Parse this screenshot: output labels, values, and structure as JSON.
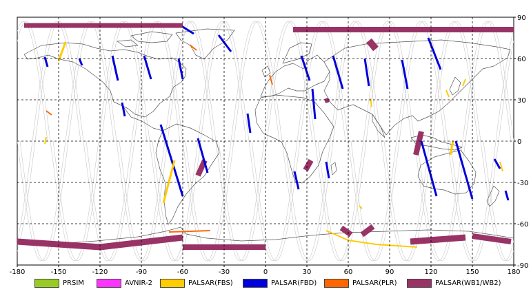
{
  "map": {
    "lon_range": [
      -180,
      180
    ],
    "lat_range": [
      -90,
      90
    ],
    "grid_step_lon": 30,
    "grid_step_lat": 30,
    "grid": "dashed",
    "x_ticks": [
      "-180",
      "-150",
      "-120",
      "-90",
      "-60",
      "-30",
      "0",
      "30",
      "60",
      "90",
      "120",
      "150",
      "180"
    ],
    "y_ticks": [
      "90",
      "60",
      "30",
      "0",
      "-30",
      "-60",
      "-90"
    ]
  },
  "legend": [
    {
      "label": "PRSIM",
      "color": "#99cc22"
    },
    {
      "label": "AVNIR-2",
      "color": "#ff33ff"
    },
    {
      "label": "PALSAR(FBS)",
      "color": "#ffcc00"
    },
    {
      "label": "PALSAR(FBD)",
      "color": "#0000dd"
    },
    {
      "label": "PALSAR(PLR)",
      "color": "#ff6600"
    },
    {
      "label": "PALSAR(WB1/WB2)",
      "color": "#993366"
    }
  ],
  "chart_data": {
    "type": "map",
    "swaths": [
      {
        "mode": "PALSAR(WB1/WB2)",
        "points": [
          [
            -175,
            84
          ],
          [
            -60,
            84
          ]
        ],
        "width": 7
      },
      {
        "mode": "PALSAR(WB1/WB2)",
        "points": [
          [
            20,
            81
          ],
          [
            180,
            81
          ]
        ],
        "width": 8
      },
      {
        "mode": "PALSAR(WB1/WB2)",
        "points": [
          [
            75,
            73
          ],
          [
            80,
            67
          ]
        ],
        "width": 10
      },
      {
        "mode": "PALSAR(WB1/WB2)",
        "points": [
          [
            44,
            31
          ],
          [
            45,
            28
          ]
        ],
        "width": 6
      },
      {
        "mode": "PALSAR(WB1/WB2)",
        "points": [
          [
            113,
            7
          ],
          [
            109,
            -10
          ]
        ],
        "width": 8
      },
      {
        "mode": "PALSAR(WB1/WB2)",
        "points": [
          [
            -44,
            -14
          ],
          [
            -49,
            -25
          ]
        ],
        "width": 8
      },
      {
        "mode": "PALSAR(WB1/WB2)",
        "points": [
          [
            33,
            -14
          ],
          [
            29,
            -21
          ]
        ],
        "width": 8
      },
      {
        "mode": "PALSAR(WB1/WB2)",
        "points": [
          [
            -180,
            -73
          ],
          [
            -120,
            -77
          ],
          [
            -60,
            -70
          ]
        ],
        "width": 9
      },
      {
        "mode": "PALSAR(WB1/WB2)",
        "points": [
          [
            -60,
            -77
          ],
          [
            0,
            -77
          ]
        ],
        "width": 8
      },
      {
        "mode": "PALSAR(WB1/WB2)",
        "points": [
          [
            55,
            -63
          ],
          [
            62,
            -68
          ]
        ],
        "width": 8
      },
      {
        "mode": "PALSAR(WB1/WB2)",
        "points": [
          [
            78,
            -62
          ],
          [
            70,
            -68
          ]
        ],
        "width": 8
      },
      {
        "mode": "PALSAR(WB1/WB2)",
        "points": [
          [
            105,
            -73
          ],
          [
            145,
            -70
          ]
        ],
        "width": 9
      },
      {
        "mode": "PALSAR(WB1/WB2)",
        "points": [
          [
            150,
            -69
          ],
          [
            178,
            -73
          ]
        ],
        "width": 8
      },
      {
        "mode": "PALSAR(FBD)",
        "points": [
          [
            -60,
            83
          ],
          [
            -52,
            78
          ]
        ],
        "width": 3
      },
      {
        "mode": "PALSAR(FBD)",
        "points": [
          [
            -34,
            77
          ],
          [
            -25,
            65
          ]
        ],
        "width": 3
      },
      {
        "mode": "PALSAR(FBD)",
        "points": [
          [
            -160,
            61
          ],
          [
            -158,
            54
          ]
        ],
        "width": 3
      },
      {
        "mode": "PALSAR(FBD)",
        "points": [
          [
            -135,
            60
          ],
          [
            -133,
            55
          ]
        ],
        "width": 3
      },
      {
        "mode": "PALSAR(FBD)",
        "points": [
          [
            -111,
            62
          ],
          [
            -107,
            44
          ]
        ],
        "width": 3
      },
      {
        "mode": "PALSAR(FBD)",
        "points": [
          [
            -88,
            62
          ],
          [
            -83,
            45
          ]
        ],
        "width": 3
      },
      {
        "mode": "PALSAR(FBD)",
        "points": [
          [
            -63,
            60
          ],
          [
            -60,
            45
          ]
        ],
        "width": 3
      },
      {
        "mode": "PALSAR(FBD)",
        "points": [
          [
            26,
            62
          ],
          [
            32,
            44
          ]
        ],
        "width": 3
      },
      {
        "mode": "PALSAR(FBD)",
        "points": [
          [
            49,
            62
          ],
          [
            56,
            38
          ]
        ],
        "width": 3
      },
      {
        "mode": "PALSAR(FBD)",
        "points": [
          [
            72,
            60
          ],
          [
            75,
            40
          ]
        ],
        "width": 3
      },
      {
        "mode": "PALSAR(FBD)",
        "points": [
          [
            99,
            59
          ],
          [
            103,
            38
          ]
        ],
        "width": 3
      },
      {
        "mode": "PALSAR(FBD)",
        "points": [
          [
            118,
            75
          ],
          [
            127,
            52
          ]
        ],
        "width": 3
      },
      {
        "mode": "PALSAR(FBD)",
        "points": [
          [
            -104,
            28
          ],
          [
            -102,
            18
          ]
        ],
        "width": 3
      },
      {
        "mode": "PALSAR(FBD)",
        "points": [
          [
            -76,
            12
          ],
          [
            -60,
            -40
          ]
        ],
        "width": 3
      },
      {
        "mode": "PALSAR(FBD)",
        "points": [
          [
            -49,
            2
          ],
          [
            -42,
            -23
          ]
        ],
        "width": 3
      },
      {
        "mode": "PALSAR(FBD)",
        "points": [
          [
            -13,
            20
          ],
          [
            -11,
            6
          ]
        ],
        "width": 3
      },
      {
        "mode": "PALSAR(FBD)",
        "points": [
          [
            34,
            38
          ],
          [
            36,
            16
          ]
        ],
        "width": 3
      },
      {
        "mode": "PALSAR(FBD)",
        "points": [
          [
            21,
            -22
          ],
          [
            24,
            -35
          ]
        ],
        "width": 3
      },
      {
        "mode": "PALSAR(FBD)",
        "points": [
          [
            44,
            -15
          ],
          [
            46,
            -27
          ]
        ],
        "width": 3
      },
      {
        "mode": "PALSAR(FBD)",
        "points": [
          [
            113,
            0
          ],
          [
            124,
            -40
          ]
        ],
        "width": 3
      },
      {
        "mode": "PALSAR(FBD)",
        "points": [
          [
            138,
            0
          ],
          [
            150,
            -42
          ]
        ],
        "width": 3
      },
      {
        "mode": "PALSAR(FBD)",
        "points": [
          [
            166,
            -13
          ],
          [
            170,
            -20
          ]
        ],
        "width": 3
      },
      {
        "mode": "PALSAR(FBD)",
        "points": [
          [
            174,
            -36
          ],
          [
            176,
            -43
          ]
        ],
        "width": 3
      },
      {
        "mode": "PALSAR(FBS)",
        "points": [
          [
            -145,
            72
          ],
          [
            -150,
            58
          ]
        ],
        "width": 3
      },
      {
        "mode": "PALSAR(FBS)",
        "points": [
          [
            -159,
            3
          ],
          [
            -160,
            -2
          ]
        ],
        "width": 2
      },
      {
        "mode": "PALSAR(FBS)",
        "points": [
          [
            -66,
            -14
          ],
          [
            -74,
            -45
          ]
        ],
        "width": 3
      },
      {
        "mode": "PALSAR(FBS)",
        "points": [
          [
            76,
            31
          ],
          [
            77,
            25
          ]
        ],
        "width": 2
      },
      {
        "mode": "PALSAR(FBS)",
        "points": [
          [
            131,
            37
          ],
          [
            133,
            32
          ]
        ],
        "width": 2
      },
      {
        "mode": "PALSAR(FBS)",
        "points": [
          [
            145,
            45
          ],
          [
            143,
            40
          ]
        ],
        "width": 2
      },
      {
        "mode": "PALSAR(FBS)",
        "points": [
          [
            136,
            0
          ],
          [
            134,
            -10
          ]
        ],
        "width": 3
      },
      {
        "mode": "PALSAR(FBS)",
        "points": [
          [
            170,
            -15
          ],
          [
            172,
            -22
          ]
        ],
        "width": 2
      },
      {
        "mode": "PALSAR(FBS)",
        "points": [
          [
            68,
            -47
          ],
          [
            70,
            -49
          ]
        ],
        "width": 2
      },
      {
        "mode": "PALSAR(FBS)",
        "points": [
          [
            44,
            -65
          ],
          [
            60,
            -72
          ],
          [
            80,
            -75
          ],
          [
            110,
            -77
          ]
        ],
        "width": 2
      },
      {
        "mode": "PALSAR(PLR)",
        "points": [
          [
            -55,
            70
          ],
          [
            -50,
            66
          ]
        ],
        "width": 2
      },
      {
        "mode": "PALSAR(PLR)",
        "points": [
          [
            -159,
            22
          ],
          [
            -155,
            19
          ]
        ],
        "width": 2
      },
      {
        "mode": "PALSAR(PLR)",
        "points": [
          [
            3,
            48
          ],
          [
            5,
            41
          ]
        ],
        "width": 2
      },
      {
        "mode": "PALSAR(PLR)",
        "points": [
          [
            -40,
            -65
          ],
          [
            -70,
            -66
          ]
        ],
        "width": 2
      }
    ]
  }
}
